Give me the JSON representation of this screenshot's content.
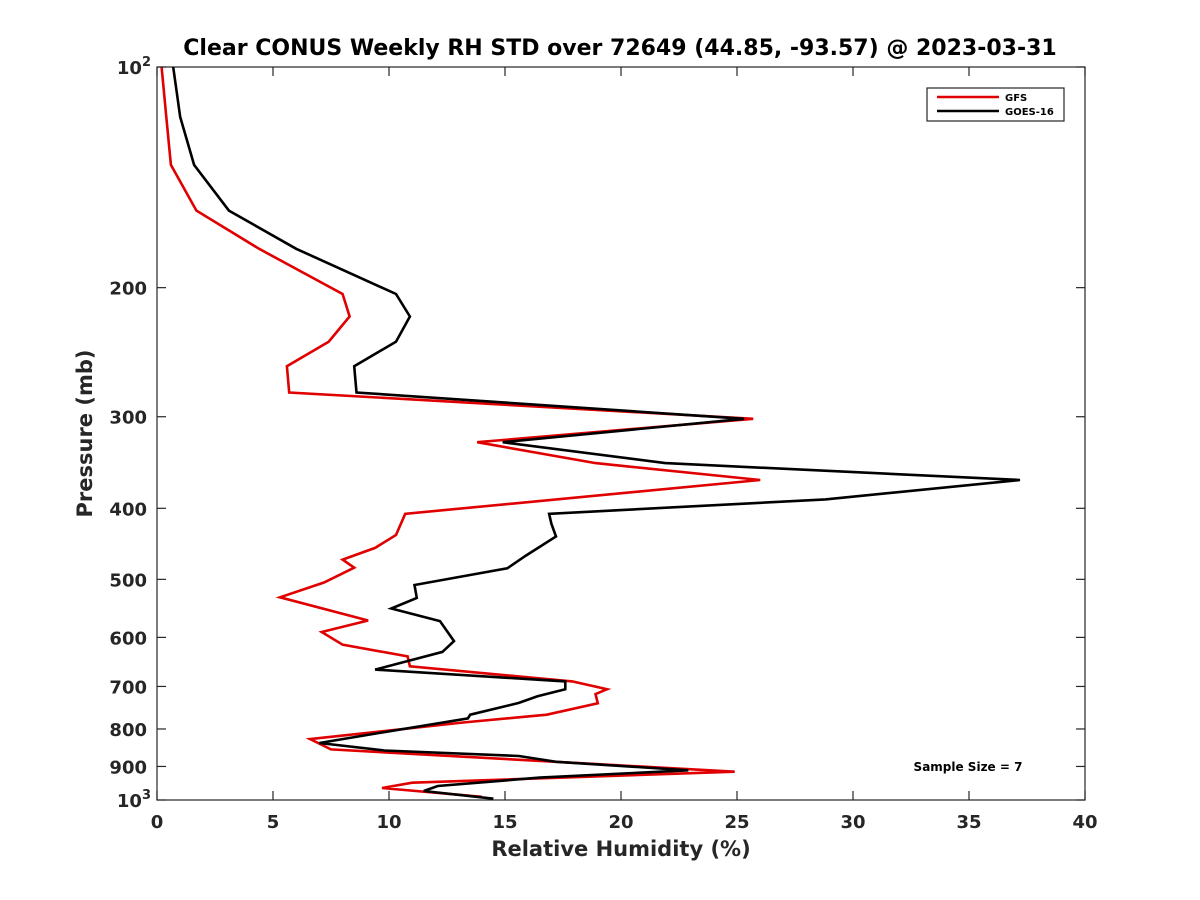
{
  "chart_data": {
    "type": "line",
    "title": "Clear CONUS Weekly RH STD over 72649 (44.85, -93.57) @ 2023-03-31",
    "xlabel": "Relative Humidity (%)",
    "ylabel": "Pressure (mb)",
    "xlim": [
      0,
      40
    ],
    "ylim": [
      100,
      1000
    ],
    "y_scale": "log",
    "y_reversed": true,
    "x_ticks": [
      "0",
      "5",
      "10",
      "15",
      "20",
      "25",
      "30",
      "35",
      "40"
    ],
    "y_ticks": [
      {
        "value": 100,
        "base": "10",
        "exp": "2"
      },
      {
        "value": 200,
        "label": "200"
      },
      {
        "value": 300,
        "label": "300"
      },
      {
        "value": 400,
        "label": "400"
      },
      {
        "value": 500,
        "label": "500"
      },
      {
        "value": 600,
        "label": "600"
      },
      {
        "value": 700,
        "label": "700"
      },
      {
        "value": 800,
        "label": "800"
      },
      {
        "value": 900,
        "label": "900"
      },
      {
        "value": 1000,
        "base": "10",
        "exp": "3"
      }
    ],
    "grid": false,
    "legend": "top-right",
    "annotation": "Sample Size = 7",
    "series": [
      {
        "name": "GFS",
        "color": "#e00000",
        "points": [
          [
            0.2,
            100
          ],
          [
            0.4,
            117
          ],
          [
            0.6,
            136
          ],
          [
            1.7,
            157
          ],
          [
            4.4,
            177
          ],
          [
            8.0,
            204
          ],
          [
            8.3,
            219
          ],
          [
            7.4,
            237
          ],
          [
            5.6,
            256
          ],
          [
            5.7,
            278
          ],
          [
            25.7,
            302
          ],
          [
            13.8,
            325
          ],
          [
            18.9,
            347
          ],
          [
            26.0,
            366
          ],
          [
            10.7,
            407
          ],
          [
            10.3,
            435
          ],
          [
            9.4,
            453
          ],
          [
            8.0,
            470
          ],
          [
            8.5,
            482
          ],
          [
            7.2,
            505
          ],
          [
            5.3,
            529
          ],
          [
            9.1,
            569
          ],
          [
            7.1,
            590
          ],
          [
            8.0,
            614
          ],
          [
            10.8,
            637
          ],
          [
            10.9,
            657
          ],
          [
            17.9,
            689
          ],
          [
            19.4,
            706
          ],
          [
            18.9,
            717
          ],
          [
            19.0,
            738
          ],
          [
            16.8,
            765
          ],
          [
            13.2,
            784
          ],
          [
            6.6,
            826
          ],
          [
            7.5,
            853
          ],
          [
            24.9,
            915
          ],
          [
            11.0,
            947
          ],
          [
            9.7,
            963
          ],
          [
            14.0,
            990
          ]
        ]
      },
      {
        "name": "GOES-16",
        "color": "#000000",
        "points": [
          [
            0.7,
            100
          ],
          [
            1.0,
            117
          ],
          [
            1.6,
            136
          ],
          [
            3.1,
            157
          ],
          [
            6.0,
            177
          ],
          [
            10.3,
            204
          ],
          [
            10.9,
            219
          ],
          [
            10.3,
            237
          ],
          [
            8.5,
            256
          ],
          [
            8.6,
            278
          ],
          [
            25.3,
            302
          ],
          [
            14.9,
            325
          ],
          [
            21.9,
            347
          ],
          [
            37.2,
            366
          ],
          [
            28.8,
            389
          ],
          [
            16.9,
            407
          ],
          [
            17.0,
            420
          ],
          [
            17.2,
            437
          ],
          [
            15.9,
            464
          ],
          [
            15.1,
            483
          ],
          [
            11.1,
            509
          ],
          [
            11.2,
            530
          ],
          [
            10.1,
            548
          ],
          [
            12.2,
            570
          ],
          [
            12.8,
            607
          ],
          [
            12.3,
            628
          ],
          [
            9.4,
            664
          ],
          [
            17.6,
            689
          ],
          [
            17.6,
            706
          ],
          [
            16.4,
            722
          ],
          [
            15.6,
            737
          ],
          [
            13.5,
            765
          ],
          [
            13.4,
            774
          ],
          [
            9.6,
            810
          ],
          [
            7.0,
            836
          ],
          [
            9.8,
            856
          ],
          [
            15.6,
            871
          ],
          [
            17.2,
            887
          ],
          [
            22.9,
            911
          ],
          [
            16.5,
            932
          ],
          [
            12.1,
            957
          ],
          [
            11.5,
            972
          ],
          [
            14.5,
            996
          ]
        ]
      }
    ]
  }
}
